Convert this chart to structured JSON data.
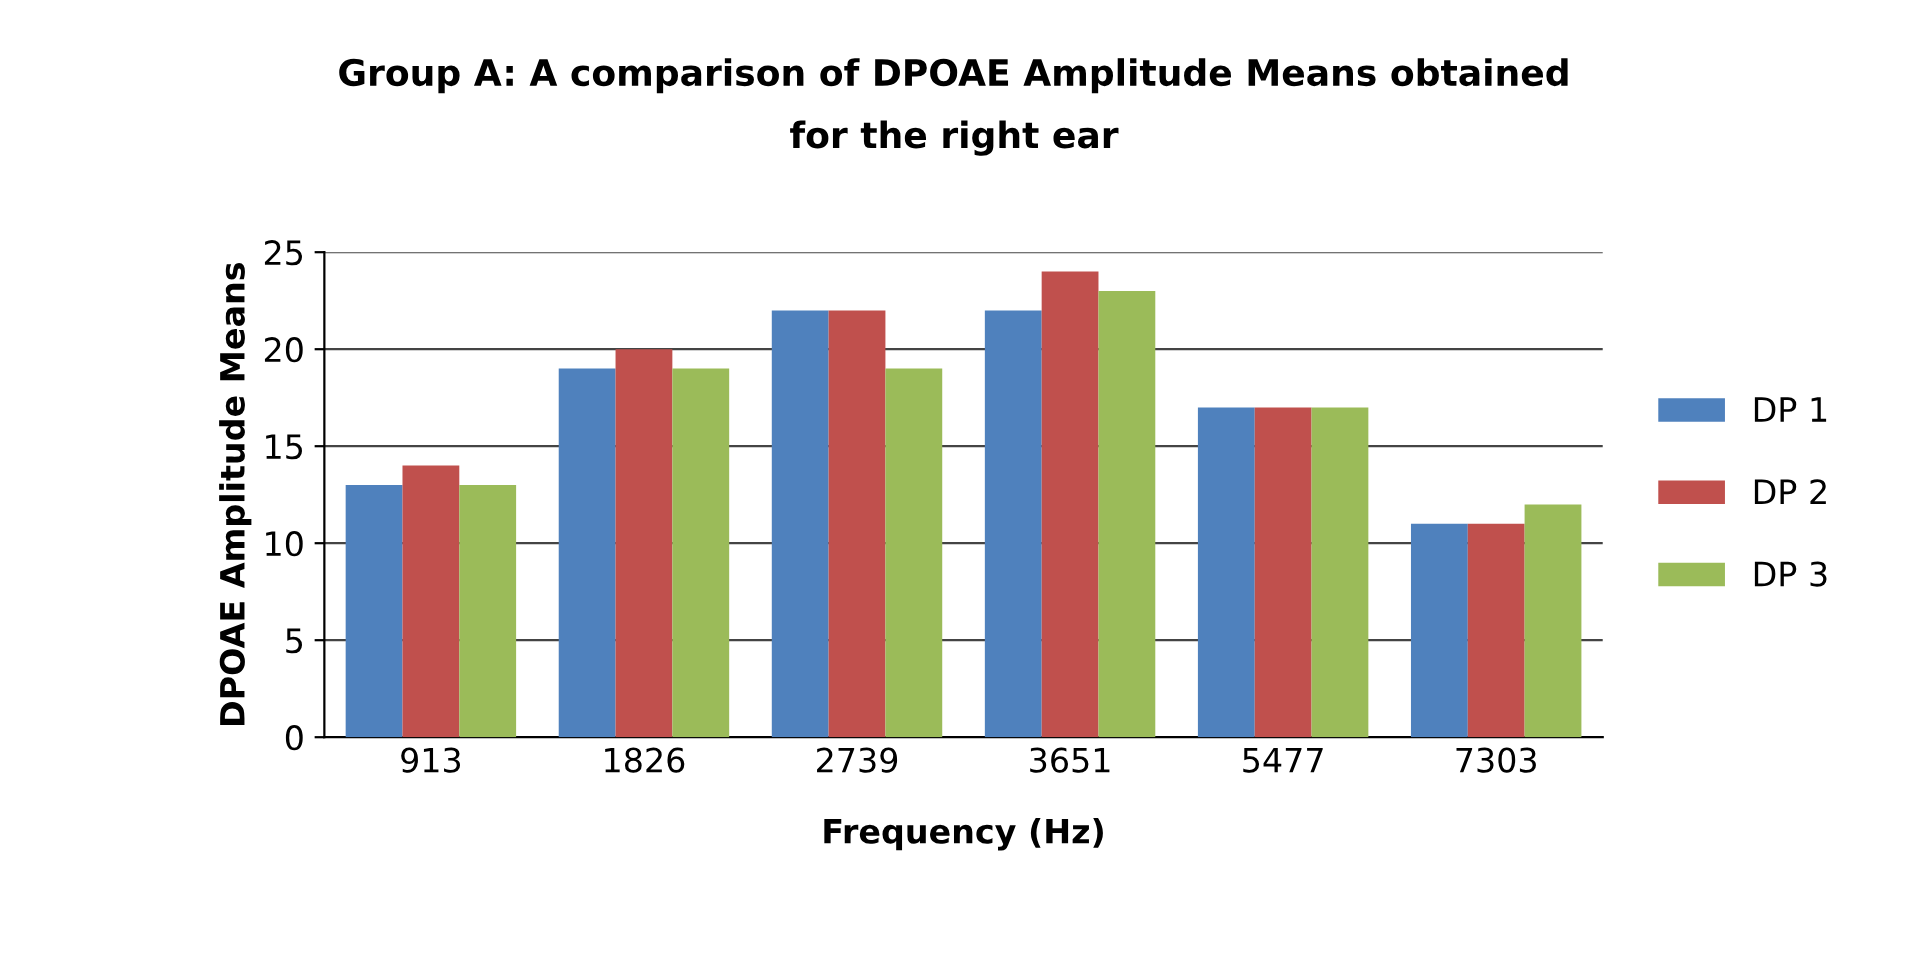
{
  "chart_data": {
    "type": "bar",
    "title": "Group A: A comparison of DPOAE Amplitude Means obtained\nfor the right ear",
    "xlabel": "Frequency (Hz)",
    "ylabel": "DPOAE Amplitude Means",
    "categories": [
      "913",
      "1826",
      "2739",
      "3651",
      "5477",
      "7303"
    ],
    "series": [
      {
        "name": "DP 1",
        "color": "#4f81bd",
        "values": [
          13,
          19,
          22,
          22,
          17,
          11
        ]
      },
      {
        "name": "DP 2",
        "color": "#c0504d",
        "values": [
          14,
          20,
          22,
          24,
          17,
          11
        ]
      },
      {
        "name": "DP 3",
        "color": "#9bbb59",
        "values": [
          13,
          19,
          19,
          23,
          17,
          12
        ]
      }
    ],
    "ylim": [
      0,
      25
    ],
    "yticks": [
      0,
      5,
      10,
      15,
      20,
      25
    ],
    "grid": "y",
    "legend": "right"
  }
}
